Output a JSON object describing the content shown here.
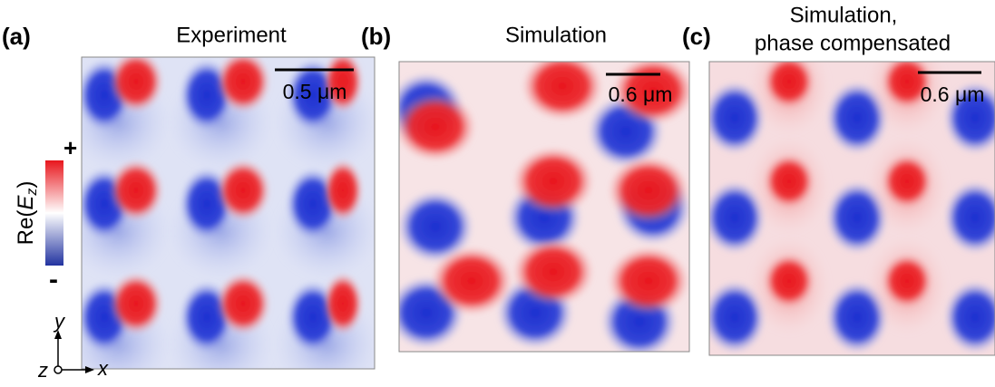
{
  "panels": [
    {
      "label": "(a)",
      "title": [
        "Experiment"
      ],
      "scale_bar": "0.5 μm"
    },
    {
      "label": "(b)",
      "title": [
        "Simulation"
      ],
      "scale_bar": "0.6 μm"
    },
    {
      "label": "(c)",
      "title": [
        "Simulation,",
        "phase compensated"
      ],
      "scale_bar": "0.6 μm"
    }
  ],
  "colorbar": {
    "prefix": "Re(",
    "symbol": "E",
    "subscript": "z",
    "suffix": ")",
    "max_label": "+",
    "min_label": "-"
  },
  "axes": {
    "y": "y",
    "z": "z",
    "x": "x"
  }
}
